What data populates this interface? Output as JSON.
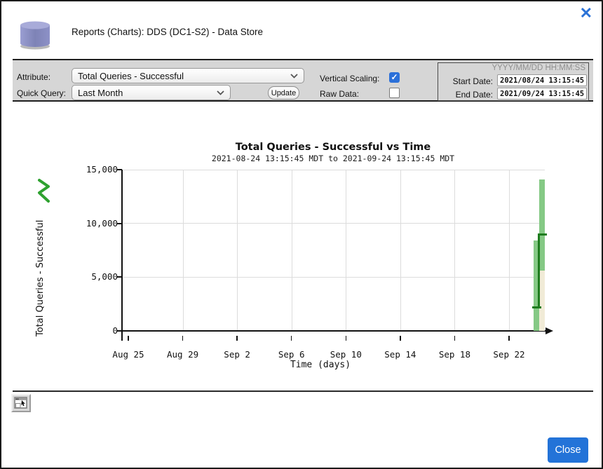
{
  "dialog": {
    "title": "Reports (Charts): DDS (DC1-S2) - Data Store",
    "close_button_label": "Close"
  },
  "icons": {
    "close_x_glyph": "✕",
    "checkmark_glyph": "✓",
    "header_icon": "database-cylinder",
    "series_icon": "green-zigzag-line",
    "popout_icon": "open-chart-in-window"
  },
  "toolbar": {
    "attribute_label": "Attribute:",
    "attribute_value": "Total Queries - Successful",
    "quick_query_label": "Quick Query:",
    "quick_query_value": "Last Month",
    "update_button": "Update",
    "vertical_scaling_label": "Vertical Scaling:",
    "vertical_scaling_checked": true,
    "raw_data_label": "Raw Data:",
    "raw_data_checked": false,
    "date_format_hint": "YYYY/MM/DD HH:MM:SS",
    "start_date_label": "Start Date:",
    "start_date_value": "2021/08/24 13:15:45",
    "end_date_label": "End Date:",
    "end_date_value": "2021/09/24 13:15:45"
  },
  "colors": {
    "accent_blue": "#2373d8",
    "checkbox_blue": "#2b70d9",
    "toolbar_bg": "#d6d6d6",
    "bar_light_green": "#85c985",
    "mean_line_dark_green": "#1d7c1d",
    "bar_beige": "#f1ebd7",
    "grid_gray": "#dcdcdc",
    "header_icon_purple": "#8d91c7"
  },
  "chart_data": {
    "type": "bar",
    "subtype": "range-bars-with-mean-step-line",
    "title": "Total Queries - Successful vs Time",
    "subtitle": "2021-08-24 13:15:45 MDT to 2021-09-24 13:15:45 MDT",
    "xlabel": "Time (days)",
    "ylabel": "Total Queries - Successful",
    "ylim": [
      0,
      15000
    ],
    "yticks": [
      0,
      5000,
      10000,
      15000
    ],
    "ytick_labels": [
      "0",
      "5,000",
      "10,000",
      "15,000"
    ],
    "xtick_labels": [
      "Aug 25",
      "Aug 29",
      "Sep 2",
      "Sep 6",
      "Sep 10",
      "Sep 14",
      "Sep 18",
      "Sep 22"
    ],
    "x_range": [
      "2021-08-24 13:15:45 MDT",
      "2021-09-24 13:15:45 MDT"
    ],
    "grid": true,
    "legend_position": "none",
    "samples": [
      {
        "time": "2021-09-23",
        "min": 0,
        "max": 8400,
        "mean": 2200,
        "range_fill": "light-green"
      },
      {
        "time": "2021-09-24",
        "min": 5600,
        "max": 14100,
        "mean": 9000,
        "range_fill": "light-green",
        "below_range_fill": "beige",
        "below_range_to": 0
      }
    ]
  }
}
